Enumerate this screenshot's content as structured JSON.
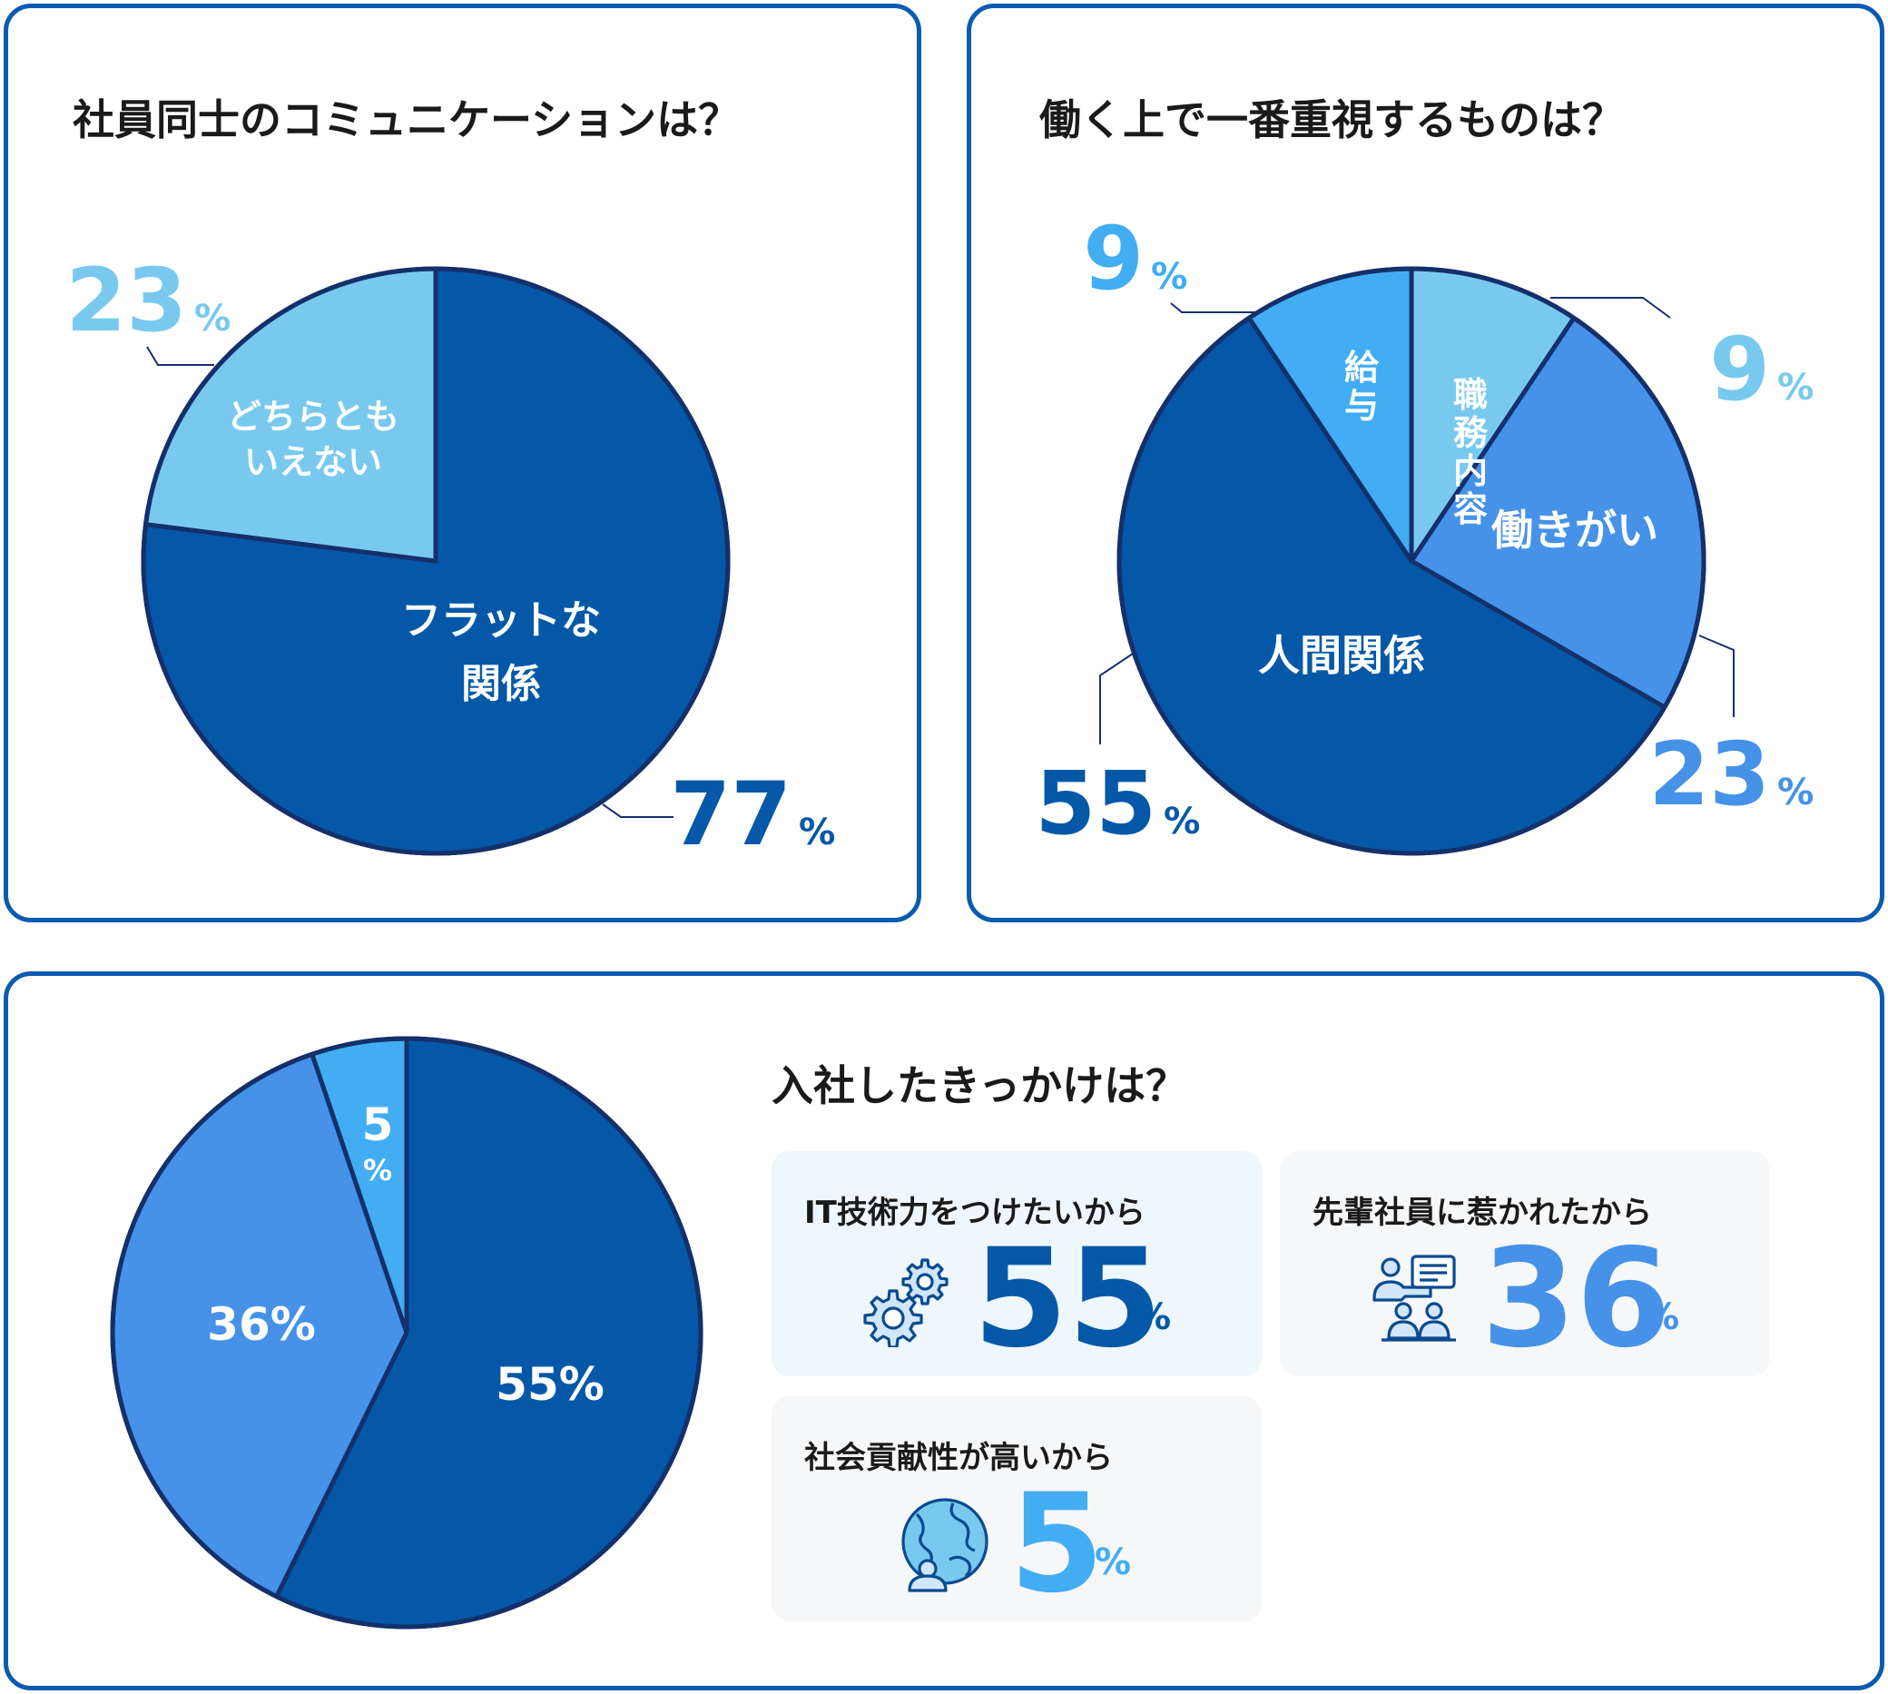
{
  "colors": {
    "border": "#0b5bb0",
    "dark_blue": "#0558a8",
    "mid_blue": "#4592e8",
    "sky_blue": "#42adf2",
    "light_blue": "#79c9ef",
    "stroke": "#14306b",
    "card_bg_blue": "#eef6fe",
    "card_bg_gray": "#f6f7f8",
    "title_text": "#1a1a1a"
  },
  "panel1": {
    "title": "社員同士のコミュニケーションは？"
  },
  "panel2": {
    "title": "働く上で一番重視するものは？"
  },
  "panel3": {
    "title": "入社したきっかけは？",
    "cards": [
      {
        "label": "IT技術力をつけたいから",
        "value": "55",
        "unit": "%",
        "icon": "gears-icon",
        "color": "#0558a8"
      },
      {
        "label": "先輩社員に惹かれたから",
        "value": "36",
        "unit": "%",
        "icon": "people-icon",
        "color": "#4592e8"
      },
      {
        "label": "社会貢献性が高いから",
        "value": "5",
        "unit": "%",
        "icon": "globe-icon",
        "color": "#42adf2"
      }
    ]
  },
  "chart_data": [
    {
      "type": "pie",
      "title": "社員同士のコミュニケーションは？",
      "slices": [
        {
          "label": "フラットな関係",
          "value": 77,
          "color": "#0558a8",
          "display": "77"
        },
        {
          "label": "どちらともいえない",
          "value": 23,
          "color": "#79c9ef",
          "display": "23"
        }
      ],
      "unit": "%"
    },
    {
      "type": "pie",
      "title": "働く上で一番重視するものは？",
      "slices": [
        {
          "label": "職務内容",
          "value": 9,
          "color": "#79c9ef",
          "display": "9"
        },
        {
          "label": "働きがい",
          "value": 23,
          "color": "#4592e8",
          "display": "23"
        },
        {
          "label": "人間関係",
          "value": 55,
          "color": "#0558a8",
          "display": "55"
        },
        {
          "label": "給与",
          "value": 9,
          "color": "#42adf2",
          "display": "9"
        }
      ],
      "unit": "%"
    },
    {
      "type": "pie",
      "title": "入社したきっかけは？",
      "slices": [
        {
          "label": "IT技術力をつけたいから",
          "value": 55,
          "color": "#0558a8",
          "display": "55%"
        },
        {
          "label": "先輩社員に惹かれたから",
          "value": 36,
          "color": "#4592e8",
          "display": "36%"
        },
        {
          "label": "社会貢献性が高いから",
          "value": 5,
          "color": "#42adf2",
          "display": "5%"
        }
      ],
      "unit": "%"
    }
  ]
}
